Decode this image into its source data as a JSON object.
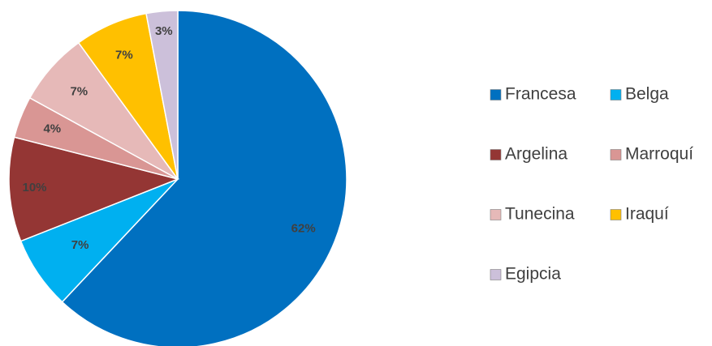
{
  "chart_data": {
    "type": "pie",
    "title": "",
    "slices": [
      {
        "label": "Francesa",
        "value": 62,
        "display": "62%",
        "color": "#0070C0"
      },
      {
        "label": "Belga",
        "value": 7,
        "display": "7%",
        "color": "#00B0F0"
      },
      {
        "label": "Argelina",
        "value": 10,
        "display": "10%",
        "color": "#943634"
      },
      {
        "label": "Marroquí",
        "value": 4,
        "display": "4%",
        "color": "#D99694"
      },
      {
        "label": "Tunecina",
        "value": 7,
        "display": "7%",
        "color": "#E6B9B8"
      },
      {
        "label": "Iraquí",
        "value": 7,
        "display": "7%",
        "color": "#FFC000"
      },
      {
        "label": "Egipcia",
        "value": 3,
        "display": "3%",
        "color": "#CCC0DA"
      }
    ],
    "start_angle_deg": 0,
    "direction": "clockwise",
    "legend": {
      "position": "right",
      "columns": 2
    }
  }
}
